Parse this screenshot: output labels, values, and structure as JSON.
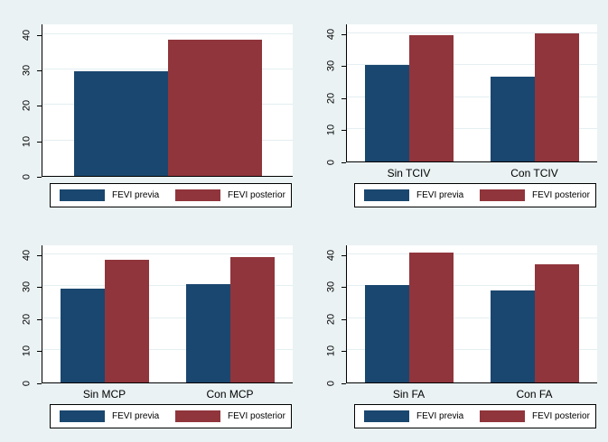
{
  "figure": {
    "description": "2x2 panel of grouped bar charts comparing FEVI previa vs FEVI posterior",
    "title": ""
  },
  "colors": {
    "background": "#eaf2f3",
    "plot_background": "#ffffff",
    "gridline": "#e4eef1",
    "axis": "#000000",
    "legend_border": "#000000",
    "text": "#000000",
    "previa": "#1a476f",
    "posterior": "#90353b"
  },
  "legend": {
    "previa_label": "FEVI previa",
    "posterior_label": "FEVI posterior",
    "position": "bottom"
  },
  "chart_data": [
    {
      "id": "overall",
      "type": "bar",
      "title": "",
      "xlabel": "",
      "ylabel": "",
      "categories": [],
      "series": [
        {
          "name": "FEVI previa",
          "color": "#1a476f",
          "values": [
            29.4
          ]
        },
        {
          "name": "FEVI posterior",
          "color": "#90353b",
          "values": [
            38.4
          ]
        }
      ],
      "ylim": [
        0,
        43
      ],
      "yticks": [
        0,
        10,
        20,
        30,
        40
      ],
      "grid": true,
      "legend_position": "bottom"
    },
    {
      "id": "tciv",
      "type": "bar",
      "title": "",
      "xlabel": "",
      "ylabel": "",
      "categories": [
        "Sin TCIV",
        "Con TCIV"
      ],
      "series": [
        {
          "name": "FEVI previa",
          "color": "#1a476f",
          "values": [
            30.1,
            26.5
          ]
        },
        {
          "name": "FEVI posterior",
          "color": "#90353b",
          "values": [
            39.3,
            40.0
          ]
        }
      ],
      "ylim": [
        0,
        43
      ],
      "yticks": [
        0,
        10,
        20,
        30,
        40
      ],
      "grid": true,
      "legend_position": "bottom"
    },
    {
      "id": "mcp",
      "type": "bar",
      "title": "",
      "xlabel": "",
      "ylabel": "",
      "categories": [
        "Sin MCP",
        "Con MCP"
      ],
      "series": [
        {
          "name": "FEVI previa",
          "color": "#1a476f",
          "values": [
            29.2,
            30.7
          ]
        },
        {
          "name": "FEVI posterior",
          "color": "#90353b",
          "values": [
            38.3,
            39.0
          ]
        }
      ],
      "ylim": [
        0,
        43
      ],
      "yticks": [
        0,
        10,
        20,
        30,
        40
      ],
      "grid": true,
      "legend_position": "bottom"
    },
    {
      "id": "fa",
      "type": "bar",
      "title": "",
      "xlabel": "",
      "ylabel": "",
      "categories": [
        "Sin FA",
        "Con FA"
      ],
      "series": [
        {
          "name": "FEVI previa",
          "color": "#1a476f",
          "values": [
            30.3,
            28.7
          ]
        },
        {
          "name": "FEVI posterior",
          "color": "#90353b",
          "values": [
            40.5,
            36.7
          ]
        }
      ],
      "ylim": [
        0,
        43
      ],
      "yticks": [
        0,
        10,
        20,
        30,
        40
      ],
      "grid": true,
      "legend_position": "bottom"
    }
  ]
}
